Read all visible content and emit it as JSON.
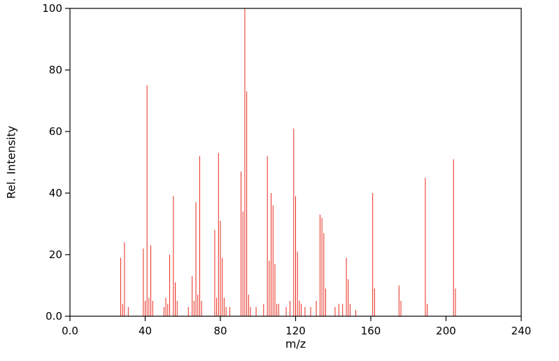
{
  "chart_data": {
    "type": "bar",
    "subtype": "mass-spectrum-stem",
    "title": "",
    "xlabel": "m/z",
    "ylabel": "Rel. Intensity",
    "xlim": [
      0,
      240
    ],
    "ylim": [
      0,
      100
    ],
    "x_ticks": [
      0,
      40,
      80,
      120,
      160,
      200,
      240
    ],
    "x_tick_labels": [
      "0.0",
      "40",
      "80",
      "120",
      "160",
      "200",
      "240"
    ],
    "y_ticks": [
      0,
      20,
      40,
      60,
      80,
      100
    ],
    "y_tick_labels": [
      "0.0",
      "20",
      "40",
      "60",
      "80",
      "100"
    ],
    "grid": false,
    "legend": null,
    "stem_color": "#e8291c",
    "axis_color": "#000000",
    "background": "#ffffff",
    "peaks_format": [
      "mz",
      "rel_intensity"
    ],
    "peaks": [
      [
        27,
        19
      ],
      [
        28,
        4
      ],
      [
        29,
        24
      ],
      [
        31,
        3
      ],
      [
        39,
        22
      ],
      [
        40,
        5
      ],
      [
        41,
        75
      ],
      [
        42,
        6
      ],
      [
        43,
        23
      ],
      [
        44,
        5
      ],
      [
        50,
        3
      ],
      [
        51,
        6
      ],
      [
        52,
        4
      ],
      [
        53,
        20
      ],
      [
        55,
        39
      ],
      [
        56,
        11
      ],
      [
        57,
        5
      ],
      [
        63,
        3
      ],
      [
        65,
        13
      ],
      [
        66,
        5
      ],
      [
        67,
        37
      ],
      [
        68,
        7
      ],
      [
        69,
        52
      ],
      [
        70,
        5
      ],
      [
        77,
        28
      ],
      [
        78,
        6
      ],
      [
        79,
        53
      ],
      [
        80,
        31
      ],
      [
        81,
        19
      ],
      [
        82,
        6
      ],
      [
        83,
        3
      ],
      [
        85,
        3
      ],
      [
        91,
        47
      ],
      [
        92,
        34
      ],
      [
        93,
        100
      ],
      [
        94,
        73
      ],
      [
        95,
        7
      ],
      [
        96,
        3
      ],
      [
        99,
        3
      ],
      [
        103,
        4
      ],
      [
        105,
        52
      ],
      [
        106,
        18
      ],
      [
        107,
        40
      ],
      [
        108,
        36
      ],
      [
        109,
        17
      ],
      [
        110,
        4
      ],
      [
        111,
        4
      ],
      [
        115,
        3
      ],
      [
        117,
        5
      ],
      [
        119,
        61
      ],
      [
        120,
        39
      ],
      [
        121,
        21
      ],
      [
        122,
        5
      ],
      [
        123,
        4
      ],
      [
        125,
        3
      ],
      [
        128,
        3
      ],
      [
        131,
        5
      ],
      [
        133,
        33
      ],
      [
        134,
        32
      ],
      [
        135,
        27
      ],
      [
        136,
        9
      ],
      [
        141,
        3
      ],
      [
        143,
        4
      ],
      [
        145,
        4
      ],
      [
        147,
        19
      ],
      [
        148,
        12
      ],
      [
        149,
        4
      ],
      [
        152,
        2
      ],
      [
        161,
        40
      ],
      [
        162,
        9
      ],
      [
        175,
        10
      ],
      [
        176,
        5
      ],
      [
        189,
        45
      ],
      [
        190,
        4
      ],
      [
        204,
        51
      ],
      [
        205,
        9
      ]
    ]
  }
}
